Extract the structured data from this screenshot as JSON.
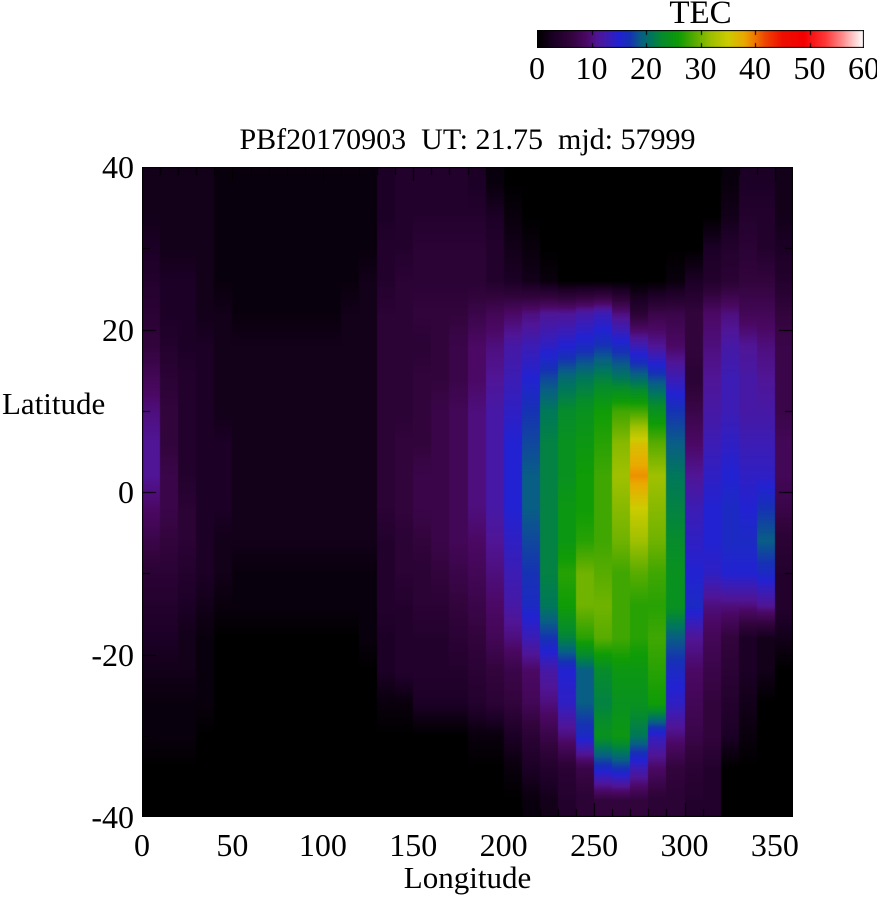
{
  "chart_data": {
    "type": "heatmap",
    "title": "PBf20170903  UT: 21.75  mjd: 57999",
    "xlabel": "Longitude",
    "ylabel": "Latitude",
    "xlim": [
      0,
      360
    ],
    "ylim": [
      -40,
      40
    ],
    "xticks": [
      "0",
      "50",
      "100",
      "150",
      "200",
      "250",
      "300",
      "350"
    ],
    "xtick_values": [
      0,
      50,
      100,
      150,
      200,
      250,
      300,
      350
    ],
    "xtick_minor_step": 10,
    "yticks": [
      "40",
      "20",
      "0",
      "-20",
      "-40"
    ],
    "ytick_values": [
      40,
      20,
      0,
      -20,
      -40
    ],
    "ytick_minor_step": 10,
    "grid_lines": "off",
    "colorbar": {
      "title": "TEC",
      "min": 0,
      "max": 60,
      "ticks": [
        "0",
        "10",
        "20",
        "30",
        "40",
        "50",
        "60"
      ],
      "tick_values": [
        0,
        10,
        20,
        30,
        40,
        50,
        60
      ],
      "position": "top-right"
    },
    "colormap_stops": [
      [
        0,
        "#000000"
      ],
      [
        3,
        "#1c0026"
      ],
      [
        6,
        "#32043c"
      ],
      [
        9,
        "#4b0864"
      ],
      [
        11,
        "#501596"
      ],
      [
        13,
        "#3c1cb4"
      ],
      [
        15,
        "#2222d2"
      ],
      [
        17,
        "#1632b4"
      ],
      [
        19,
        "#095e86"
      ],
      [
        21,
        "#00785a"
      ],
      [
        23,
        "#068c2c"
      ],
      [
        26,
        "#0f9c06"
      ],
      [
        29,
        "#58ac00"
      ],
      [
        32,
        "#a0c000"
      ],
      [
        35,
        "#cccc00"
      ],
      [
        38,
        "#eaaa00"
      ],
      [
        40,
        "#f07800"
      ],
      [
        42,
        "#ee4400"
      ],
      [
        45,
        "#ee1000"
      ],
      [
        49,
        "#f40000"
      ],
      [
        53,
        "#ff3838"
      ],
      [
        56,
        "#ff8888"
      ],
      [
        58,
        "#ffc6c6"
      ],
      [
        60,
        "#ffffff"
      ]
    ],
    "grid": {
      "lon_start": 5,
      "lon_step": 10,
      "n_lon": 36,
      "lat_start": 38,
      "lat_step": -4,
      "n_lat": 20,
      "units": "TECU"
    },
    "values": [
      [
        2,
        2,
        2,
        2,
        1,
        1,
        1,
        1,
        1,
        1,
        1,
        1,
        1,
        3,
        4,
        4,
        4,
        4,
        3,
        1,
        0,
        0,
        0,
        0,
        0,
        0,
        0,
        0,
        0,
        0,
        0,
        0,
        1,
        3,
        3,
        2
      ],
      [
        2,
        2,
        2,
        2,
        1,
        1,
        1,
        1,
        1,
        1,
        1,
        1,
        1,
        3,
        4,
        4,
        4,
        4,
        4,
        3,
        1,
        0,
        0,
        0,
        0,
        0,
        0,
        0,
        0,
        0,
        0,
        0,
        2,
        4,
        4,
        2
      ],
      [
        3,
        2,
        2,
        2,
        1,
        1,
        1,
        1,
        1,
        1,
        1,
        1,
        1,
        4,
        4,
        5,
        5,
        5,
        5,
        4,
        2,
        1,
        0,
        0,
        0,
        0,
        0,
        0,
        0,
        0,
        0,
        3,
        4,
        5,
        4,
        3
      ],
      [
        4,
        3,
        3,
        2,
        1,
        1,
        1,
        1,
        1,
        1,
        1,
        1,
        2,
        4,
        5,
        5,
        5,
        5,
        5,
        4,
        3,
        2,
        1,
        0,
        0,
        0,
        0,
        0,
        0,
        1,
        3,
        4,
        5,
        6,
        6,
        4
      ],
      [
        5,
        3,
        3,
        2,
        2,
        1,
        1,
        1,
        1,
        1,
        1,
        2,
        2,
        5,
        5,
        6,
        6,
        6,
        7,
        8,
        9,
        10,
        11,
        11,
        12,
        13,
        10,
        5,
        7,
        7,
        6,
        9,
        10,
        8,
        8,
        6
      ],
      [
        6,
        4,
        3,
        3,
        2,
        2,
        2,
        2,
        2,
        2,
        2,
        2,
        2,
        5,
        5,
        5,
        6,
        7,
        9,
        10,
        12,
        13,
        14,
        15,
        16,
        17,
        16,
        13,
        11,
        9,
        6,
        10,
        12,
        11,
        10,
        7
      ],
      [
        8,
        5,
        4,
        3,
        2,
        2,
        2,
        2,
        2,
        2,
        2,
        2,
        2,
        5,
        5,
        6,
        6,
        7,
        9,
        11,
        13,
        15,
        18,
        20,
        21,
        22,
        21,
        20,
        18,
        13,
        5,
        11,
        13,
        12,
        11,
        7
      ],
      [
        10,
        6,
        4,
        3,
        2,
        2,
        2,
        2,
        2,
        2,
        2,
        2,
        2,
        5,
        5,
        6,
        7,
        8,
        10,
        12,
        14,
        17,
        21,
        23,
        24,
        26,
        28,
        28,
        24,
        17,
        7,
        12,
        13,
        12,
        12,
        7
      ],
      [
        11,
        6,
        4,
        3,
        3,
        2,
        2,
        2,
        2,
        2,
        2,
        2,
        2,
        5,
        6,
        6,
        7,
        8,
        10,
        12,
        15,
        18,
        22,
        24,
        25,
        27,
        31,
        36,
        29,
        19,
        9,
        13,
        14,
        13,
        13,
        8
      ],
      [
        11,
        7,
        4,
        3,
        3,
        2,
        2,
        2,
        2,
        2,
        2,
        2,
        2,
        5,
        6,
        7,
        7,
        8,
        10,
        12,
        15,
        19,
        22,
        24,
        26,
        28,
        32,
        39,
        32,
        21,
        11,
        14,
        15,
        14,
        14,
        8
      ],
      [
        9,
        7,
        5,
        3,
        3,
        2,
        2,
        2,
        2,
        2,
        2,
        2,
        2,
        5,
        6,
        7,
        7,
        8,
        10,
        12,
        15,
        19,
        22,
        25,
        26,
        28,
        31,
        35,
        31,
        22,
        13,
        15,
        16,
        15,
        17,
        7
      ],
      [
        7,
        6,
        5,
        3,
        2,
        2,
        2,
        2,
        2,
        2,
        2,
        2,
        2,
        4,
        5,
        6,
        7,
        8,
        9,
        11,
        14,
        18,
        22,
        25,
        27,
        28,
        30,
        32,
        30,
        23,
        14,
        15,
        16,
        16,
        19,
        5
      ],
      [
        5,
        5,
        4,
        3,
        2,
        1,
        1,
        1,
        1,
        1,
        1,
        1,
        1,
        4,
        5,
        5,
        6,
        7,
        8,
        10,
        13,
        17,
        22,
        27,
        30,
        29,
        28,
        29,
        28,
        24,
        15,
        14,
        15,
        15,
        16,
        4
      ],
      [
        4,
        4,
        3,
        2,
        1,
        1,
        1,
        1,
        1,
        1,
        1,
        1,
        1,
        4,
        4,
        5,
        5,
        6,
        7,
        9,
        12,
        16,
        21,
        26,
        30,
        30,
        28,
        27,
        27,
        24,
        16,
        10,
        10,
        10,
        11,
        4
      ],
      [
        3,
        3,
        2,
        1,
        0,
        0,
        0,
        0,
        0,
        0,
        0,
        0,
        1,
        3,
        4,
        4,
        4,
        5,
        6,
        8,
        10,
        13,
        17,
        22,
        27,
        29,
        28,
        27,
        28,
        19,
        11,
        8,
        6,
        3,
        2,
        2
      ],
      [
        2,
        2,
        2,
        1,
        0,
        0,
        0,
        0,
        0,
        0,
        0,
        0,
        0,
        3,
        4,
        4,
        4,
        4,
        5,
        6,
        7,
        9,
        12,
        15,
        19,
        23,
        25,
        25,
        27,
        16,
        9,
        7,
        5,
        3,
        2,
        0
      ],
      [
        1,
        1,
        1,
        1,
        0,
        0,
        0,
        0,
        0,
        0,
        0,
        0,
        0,
        1,
        1,
        3,
        3,
        3,
        4,
        5,
        6,
        8,
        10,
        14,
        19,
        22,
        24,
        24,
        26,
        14,
        8,
        6,
        4,
        2,
        0,
        0
      ],
      [
        1,
        1,
        1,
        0,
        0,
        0,
        0,
        0,
        0,
        0,
        0,
        0,
        0,
        0,
        0,
        0,
        0,
        0,
        1,
        1,
        3,
        5,
        7,
        10,
        16,
        24,
        25,
        21,
        14,
        10,
        7,
        6,
        3,
        1,
        0,
        0
      ],
      [
        0,
        0,
        0,
        0,
        0,
        0,
        0,
        0,
        0,
        0,
        0,
        0,
        0,
        0,
        0,
        0,
        0,
        0,
        0,
        0,
        1,
        3,
        4,
        5,
        7,
        16,
        17,
        13,
        9,
        6,
        5,
        4,
        0,
        0,
        0,
        0
      ],
      [
        0,
        0,
        0,
        0,
        0,
        0,
        0,
        0,
        0,
        0,
        0,
        0,
        0,
        0,
        0,
        0,
        0,
        0,
        0,
        0,
        0,
        1,
        2,
        4,
        5,
        6,
        6,
        6,
        5,
        5,
        4,
        4,
        0,
        0,
        0,
        0
      ]
    ]
  }
}
